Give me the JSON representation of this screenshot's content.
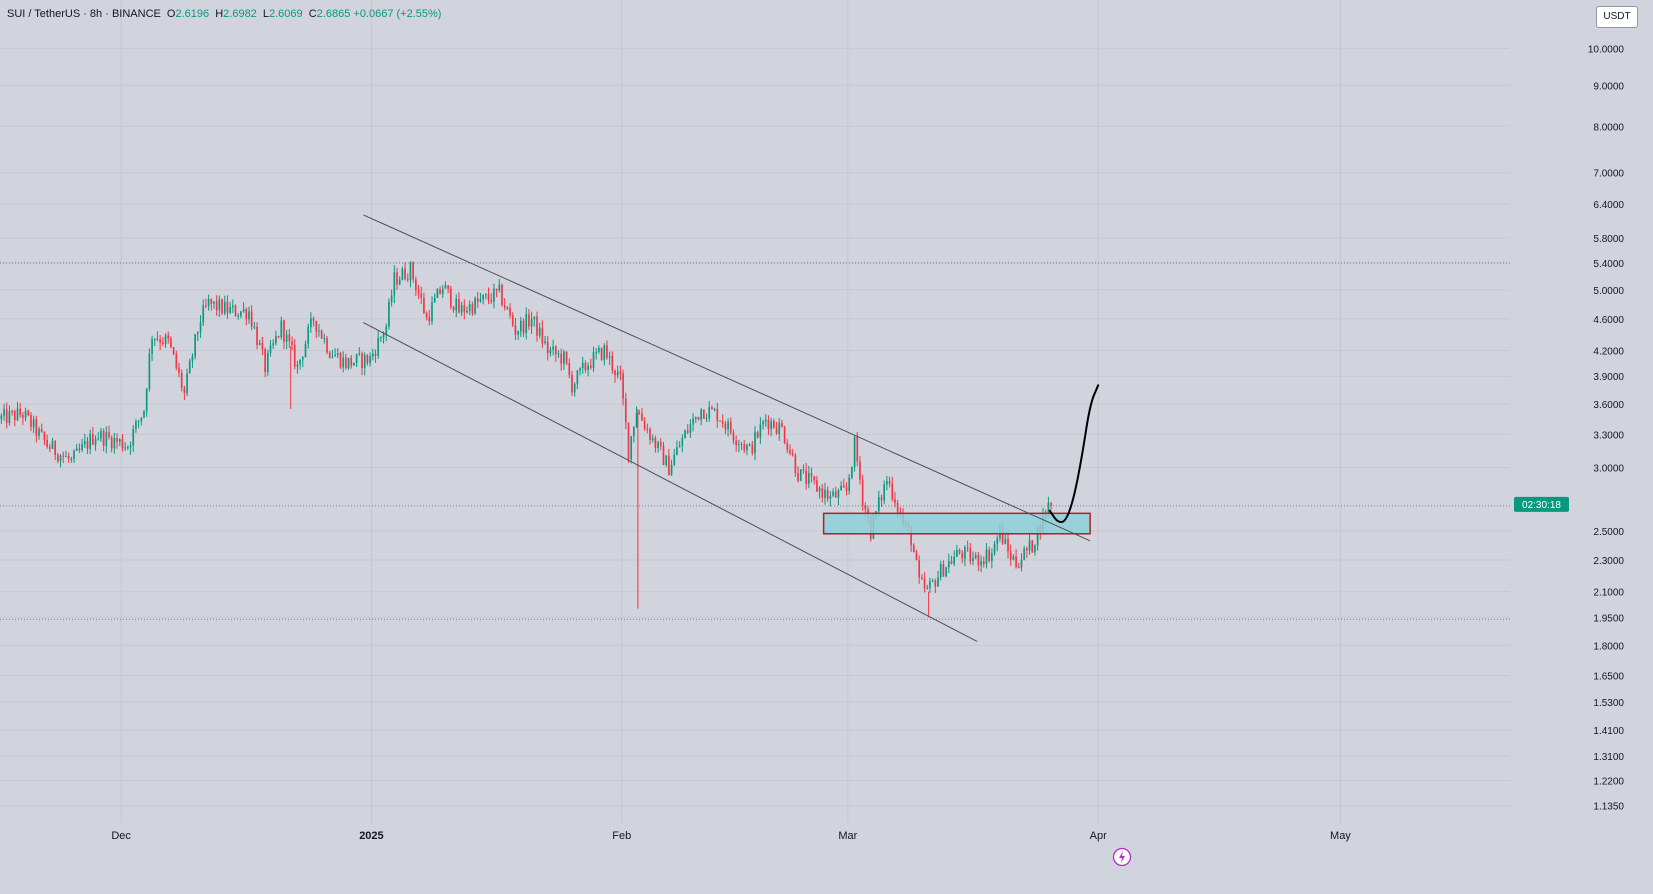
{
  "header": {
    "symbol": "SUI / TetherUS · 8h · BINANCE",
    "open_label": "O",
    "open": "2.6196",
    "high_label": "H",
    "high": "2.6982",
    "low_label": "L",
    "low": "2.6069",
    "close_label": "C",
    "close": "2.6865",
    "change": "+0.0667 (+2.55%)",
    "currency": "USDT"
  },
  "colors": {
    "background": "#d1d4dc",
    "up": "#089981",
    "down": "#f23645",
    "trendline": "#4a4e59",
    "zone_fill": "#8ed0d8",
    "zone_border": "#b22020",
    "projection": "#000000",
    "countdown_bg": "#089981"
  },
  "countdown": "02:30:18",
  "chart_data": {
    "type": "candlestick",
    "scale": "log",
    "ylim": [
      1.08,
      11.5
    ],
    "y_ticks": [
      "10.0000",
      "9.0000",
      "8.0000",
      "7.0000",
      "6.4000",
      "5.8000",
      "5.4000",
      "5.0000",
      "4.6000",
      "4.2000",
      "3.9000",
      "3.6000",
      "3.3000",
      "3.0000",
      "2.5000",
      "2.3000",
      "2.1000",
      "1.9500",
      "1.8000",
      "1.6500",
      "1.5300",
      "1.4100",
      "1.3100",
      "1.2200",
      "1.1350"
    ],
    "x_ticks": [
      {
        "date": "2024-12-01",
        "label": "Dec",
        "bold": false
      },
      {
        "date": "2025-01-01",
        "label": "2025",
        "bold": true
      },
      {
        "date": "2025-02-01",
        "label": "Feb",
        "bold": false
      },
      {
        "date": "2025-03-01",
        "label": "Mar",
        "bold": false
      },
      {
        "date": "2025-04-01",
        "label": "Apr",
        "bold": false
      },
      {
        "date": "2025-05-01",
        "label": "May",
        "bold": false
      }
    ],
    "xlim": [
      "2024-11-16",
      "2025-05-22"
    ],
    "price_path": [
      [
        "2024-11-16",
        3.45
      ],
      [
        "2024-11-19",
        3.5
      ],
      [
        "2024-11-22",
        3.2
      ],
      [
        "2024-11-25",
        3.05
      ],
      [
        "2024-11-28",
        3.3
      ],
      [
        "2024-12-02",
        3.2
      ],
      [
        "2024-12-04",
        3.55
      ],
      [
        "2024-12-05",
        4.4
      ],
      [
        "2024-12-07",
        4.3
      ],
      [
        "2024-12-09",
        3.7
      ],
      [
        "2024-12-11",
        4.6
      ],
      [
        "2024-12-12",
        4.8
      ],
      [
        "2024-12-15",
        4.7
      ],
      [
        "2024-12-17",
        4.7
      ],
      [
        "2024-12-19",
        4.0
      ],
      [
        "2024-12-21",
        4.5
      ],
      [
        "2024-12-23",
        4.0
      ],
      [
        "2024-12-25",
        4.6
      ],
      [
        "2024-12-27",
        4.2
      ],
      [
        "2024-12-29",
        4.05
      ],
      [
        "2025-01-01",
        4.1
      ],
      [
        "2025-01-03",
        4.5
      ],
      [
        "2025-01-04",
        5.15
      ],
      [
        "2025-01-06",
        5.3
      ],
      [
        "2025-01-08",
        4.6
      ],
      [
        "2025-01-10",
        5.05
      ],
      [
        "2025-01-12",
        4.7
      ],
      [
        "2025-01-15",
        4.85
      ],
      [
        "2025-01-17",
        4.95
      ],
      [
        "2025-01-19",
        4.45
      ],
      [
        "2025-01-21",
        4.6
      ],
      [
        "2025-01-23",
        4.2
      ],
      [
        "2025-01-25",
        4.1
      ],
      [
        "2025-01-26",
        3.8
      ],
      [
        "2025-01-28",
        4.05
      ],
      [
        "2025-01-30",
        4.2
      ],
      [
        "2025-02-01",
        3.85
      ],
      [
        "2025-02-02",
        3.15
      ],
      [
        "2025-02-03",
        3.55
      ],
      [
        "2025-02-05",
        3.25
      ],
      [
        "2025-02-07",
        3.0
      ],
      [
        "2025-02-09",
        3.3
      ],
      [
        "2025-02-11",
        3.55
      ],
      [
        "2025-02-13",
        3.5
      ],
      [
        "2025-02-15",
        3.3
      ],
      [
        "2025-02-17",
        3.15
      ],
      [
        "2025-02-19",
        3.45
      ],
      [
        "2025-02-21",
        3.35
      ],
      [
        "2025-02-23",
        2.95
      ],
      [
        "2025-02-25",
        2.85
      ],
      [
        "2025-02-27",
        2.75
      ],
      [
        "2025-03-01",
        2.8
      ],
      [
        "2025-03-02",
        3.2
      ],
      [
        "2025-03-03",
        2.75
      ],
      [
        "2025-03-04",
        2.5
      ],
      [
        "2025-03-06",
        2.9
      ],
      [
        "2025-03-07",
        2.75
      ],
      [
        "2025-03-08",
        2.55
      ],
      [
        "2025-03-09",
        2.45
      ],
      [
        "2025-03-10",
        2.15
      ],
      [
        "2025-03-11",
        2.1
      ],
      [
        "2025-03-13",
        2.25
      ],
      [
        "2025-03-15",
        2.35
      ],
      [
        "2025-03-17",
        2.3
      ],
      [
        "2025-03-19",
        2.35
      ],
      [
        "2025-03-20",
        2.5
      ],
      [
        "2025-03-21",
        2.35
      ],
      [
        "2025-03-22",
        2.28
      ],
      [
        "2025-03-24",
        2.4
      ],
      [
        "2025-03-25",
        2.55
      ],
      [
        "2025-03-26",
        2.6865
      ]
    ],
    "spikes": [
      {
        "date": "2025-02-03",
        "low": 2.0
      },
      {
        "date": "2025-03-11",
        "low": 1.95
      },
      {
        "date": "2024-12-22",
        "low": 3.55
      }
    ],
    "trendlines": [
      {
        "from": [
          "2024-12-31",
          6.2
        ],
        "to": [
          "2025-03-31",
          2.43
        ]
      },
      {
        "from": [
          "2024-12-31",
          4.55
        ],
        "to": [
          "2025-03-17",
          1.82
        ]
      }
    ],
    "horizontal_levels": [
      5.4,
      2.6865,
      1.94
    ],
    "zone": {
      "from": "2025-02-26",
      "to": "2025-03-31",
      "low": 2.48,
      "high": 2.63
    },
    "projection": [
      [
        "2025-03-26",
        2.65
      ],
      [
        "2025-03-27",
        2.56
      ],
      [
        "2025-03-28",
        2.57
      ],
      [
        "2025-03-29",
        2.75
      ],
      [
        "2025-03-30",
        3.1
      ],
      [
        "2025-03-31",
        3.6
      ],
      [
        "2025-04-01",
        3.8
      ]
    ]
  }
}
